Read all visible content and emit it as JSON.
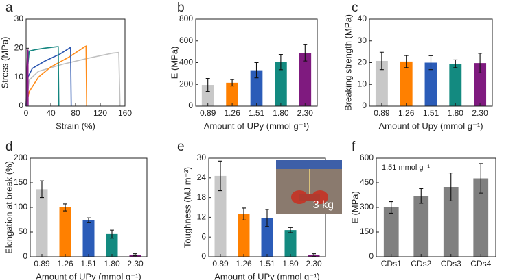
{
  "chart_data": [
    {
      "type": "line",
      "label": "a",
      "x_label": "Strain (%)",
      "y_label": "Stress (MPa)",
      "xlim": [
        0,
        160
      ],
      "xticks": [
        0,
        40,
        80,
        120,
        160
      ],
      "ylim": [
        0,
        30
      ],
      "yticks": [
        0,
        10,
        20,
        30
      ],
      "series": [
        {
          "color": "#c0c0c0",
          "x": [
            0,
            5,
            20,
            60,
            100,
            140,
            150,
            152
          ],
          "values": [
            0,
            9,
            12,
            14.5,
            16.5,
            18.3,
            18.5,
            0
          ]
        },
        {
          "color": "#ff8c1a",
          "x": [
            0,
            5,
            20,
            40,
            70,
            95,
            97,
            98
          ],
          "values": [
            0,
            5,
            10,
            13.5,
            17,
            20.5,
            20.7,
            0
          ]
        },
        {
          "color": "#2a55b0",
          "x": [
            0,
            3,
            10,
            30,
            55,
            70,
            72,
            73
          ],
          "values": [
            0,
            10,
            13,
            15.5,
            18,
            20,
            20.3,
            0
          ]
        },
        {
          "color": "#13857f",
          "x": [
            0,
            2,
            5,
            15,
            30,
            50,
            52,
            53
          ],
          "values": [
            0,
            12,
            19,
            19.5,
            20,
            20.5,
            20.5,
            0
          ]
        },
        {
          "color": "#8b1a8b",
          "x": [
            0,
            1,
            2,
            3,
            3.2
          ],
          "values": [
            0,
            10,
            17,
            19.5,
            0
          ]
        }
      ]
    },
    {
      "type": "bar",
      "label": "b",
      "x_label": "Amount of UPy (mmol g⁻¹)",
      "y_label": "E (MPa)",
      "categories": [
        "0.89",
        "1.26",
        "1.51",
        "1.80",
        "2.30"
      ],
      "values": [
        195,
        215,
        330,
        405,
        490
      ],
      "errors": [
        60,
        30,
        70,
        70,
        75
      ],
      "colors": [
        "#c8c8c8",
        "#ff8000",
        "#2b5cb8",
        "#138a80",
        "#7f1a7f"
      ],
      "ylim": [
        0,
        800
      ],
      "yticks": [
        0,
        200,
        400,
        600,
        800
      ]
    },
    {
      "type": "bar",
      "label": "c",
      "x_label": "Amount of Upy (mmol g⁻¹)",
      "y_label": "Breaking  strength (MPa)",
      "categories": [
        "0.89",
        "1.26",
        "1.51",
        "1.80",
        "2.30"
      ],
      "values": [
        20.8,
        20.5,
        20,
        19.5,
        19.8
      ],
      "errors": [
        4,
        2.8,
        3.2,
        1.8,
        4.5
      ],
      "colors": [
        "#c8c8c8",
        "#ff8000",
        "#2b5cb8",
        "#138a80",
        "#7f1a7f"
      ],
      "ylim": [
        0,
        40
      ],
      "yticks": [
        0,
        10,
        20,
        30,
        40
      ]
    },
    {
      "type": "bar",
      "label": "d",
      "x_label": "Amount of UPy (mmol g⁻¹)",
      "y_label": "Elongation at break (%)",
      "categories": [
        "0.89",
        "1.26",
        "1.51",
        "1.80",
        "2.30"
      ],
      "values": [
        137,
        100,
        74,
        46,
        4
      ],
      "errors": [
        17,
        7,
        5,
        8,
        2
      ],
      "colors": [
        "#c8c8c8",
        "#ff8000",
        "#2b5cb8",
        "#138a80",
        "#7f1a7f"
      ],
      "ylim": [
        0,
        200
      ],
      "yticks": [
        0,
        50,
        100,
        150,
        200
      ]
    },
    {
      "type": "bar",
      "label": "e",
      "x_label": "Amount of UPy (mmol g⁻¹)",
      "y_label": "Toughness (MJ m⁻³)",
      "categories": [
        "0.89",
        "1.26",
        "1.51",
        "1.80",
        "2.30"
      ],
      "values": [
        24.6,
        13,
        11.8,
        8.1,
        0.5
      ],
      "errors": [
        4.5,
        1.8,
        2.6,
        0.8,
        0.4
      ],
      "colors": [
        "#c8c8c8",
        "#ff8000",
        "#2b5cb8",
        "#138a80",
        "#7f1a7f"
      ],
      "ylim": [
        0,
        30
      ],
      "yticks": [
        0,
        6,
        12,
        18,
        24,
        30
      ],
      "inset_label": "3 kg"
    },
    {
      "type": "bar",
      "label": "f",
      "y_label": "E (MPa)",
      "annotation": "1.51 mmol g⁻¹",
      "categories": [
        "CDs1",
        "CDs2",
        "CDs3",
        "CDs4"
      ],
      "values": [
        300,
        370,
        425,
        477
      ],
      "errors": [
        35,
        45,
        85,
        90
      ],
      "colors": [
        "#808080",
        "#808080",
        "#808080",
        "#808080"
      ],
      "ylim": [
        0,
        600
      ],
      "yticks": [
        0,
        150,
        300,
        450,
        600
      ]
    }
  ]
}
